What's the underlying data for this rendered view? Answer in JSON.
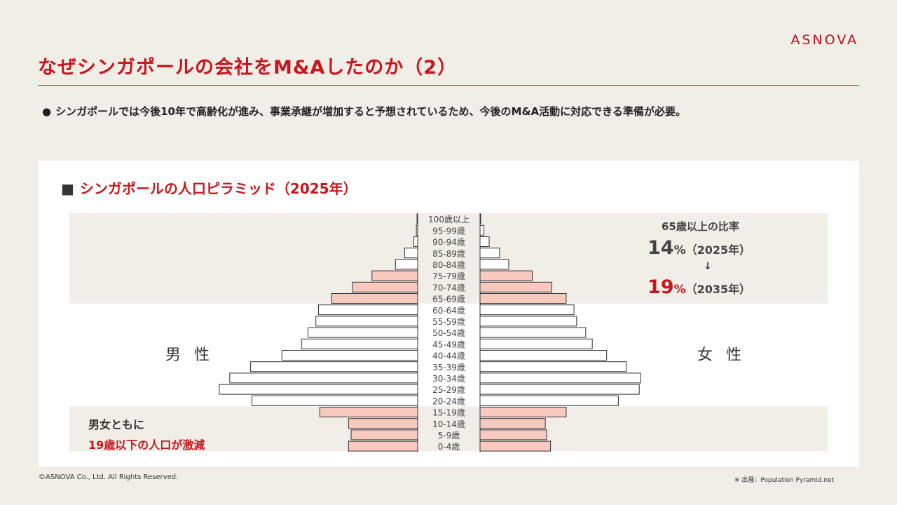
{
  "brand": "ASNOVA",
  "title": "なぜシンガポールの会社をM&Aしたのか（2）",
  "bullet": {
    "marker": "●",
    "text": "シンガポールでは今後10年で高齢化が進み、事業承継が増加すると予想されているため、今後のM&A活動に対応できる準備が必要。"
  },
  "panel_title": {
    "marker": "■",
    "text": "シンガポールの人口ピラミッド（2025年）"
  },
  "labels": {
    "male": "男 性",
    "female": "女 性"
  },
  "ratio": {
    "title": "65歳以上の比率",
    "value_2025": "14",
    "value_2035": "19",
    "unit": "%",
    "year_2025": "（2025年）",
    "year_2035": "（2035年）",
    "arrow": "↓"
  },
  "note": {
    "line1": "男女ともに",
    "line2": "19歳以下の人口が激減"
  },
  "footer": {
    "copyright": "©ASNOVA Co., Ltd. All Rights Reserved.",
    "source": "※ 出展：Population Pyramid.net"
  },
  "colors": {
    "accent": "#c8161d",
    "highlight_bar": "#f9c9bf",
    "normal_bar": "#ffffff",
    "band": "#f1eee8"
  },
  "chart_data": {
    "type": "bar",
    "orientation": "horizontal-pyramid",
    "categories": [
      "100歳以上",
      "95-99歳",
      "90-94歳",
      "85-89歳",
      "80-84歳",
      "75-79歳",
      "70-74歳",
      "65-69歳",
      "60-64歳",
      "55-59歳",
      "50-54歳",
      "45-49歳",
      "40-44歳",
      "35-39歳",
      "30-34歳",
      "25-29歳",
      "20-24歳",
      "15-19歳",
      "10-14歳",
      "5-9歳",
      "0-4歳"
    ],
    "highlighted": [
      false,
      false,
      false,
      false,
      false,
      true,
      true,
      true,
      false,
      false,
      false,
      false,
      false,
      false,
      false,
      false,
      false,
      true,
      true,
      true,
      true
    ],
    "series": [
      {
        "values": [
          0.5,
          1,
          3,
          10,
          17,
          35,
          50,
          66,
          76,
          78,
          84,
          89,
          104,
          128,
          144,
          152,
          127,
          75,
          53,
          51,
          53
        ]
      },
      {
        "values": [
          0.5,
          3,
          7,
          15,
          22,
          40,
          55,
          66,
          72,
          74,
          81,
          86,
          97,
          112,
          123,
          122,
          106,
          66,
          50,
          51,
          54
        ]
      }
    ],
    "xlim": [
      0,
      160
    ]
  }
}
